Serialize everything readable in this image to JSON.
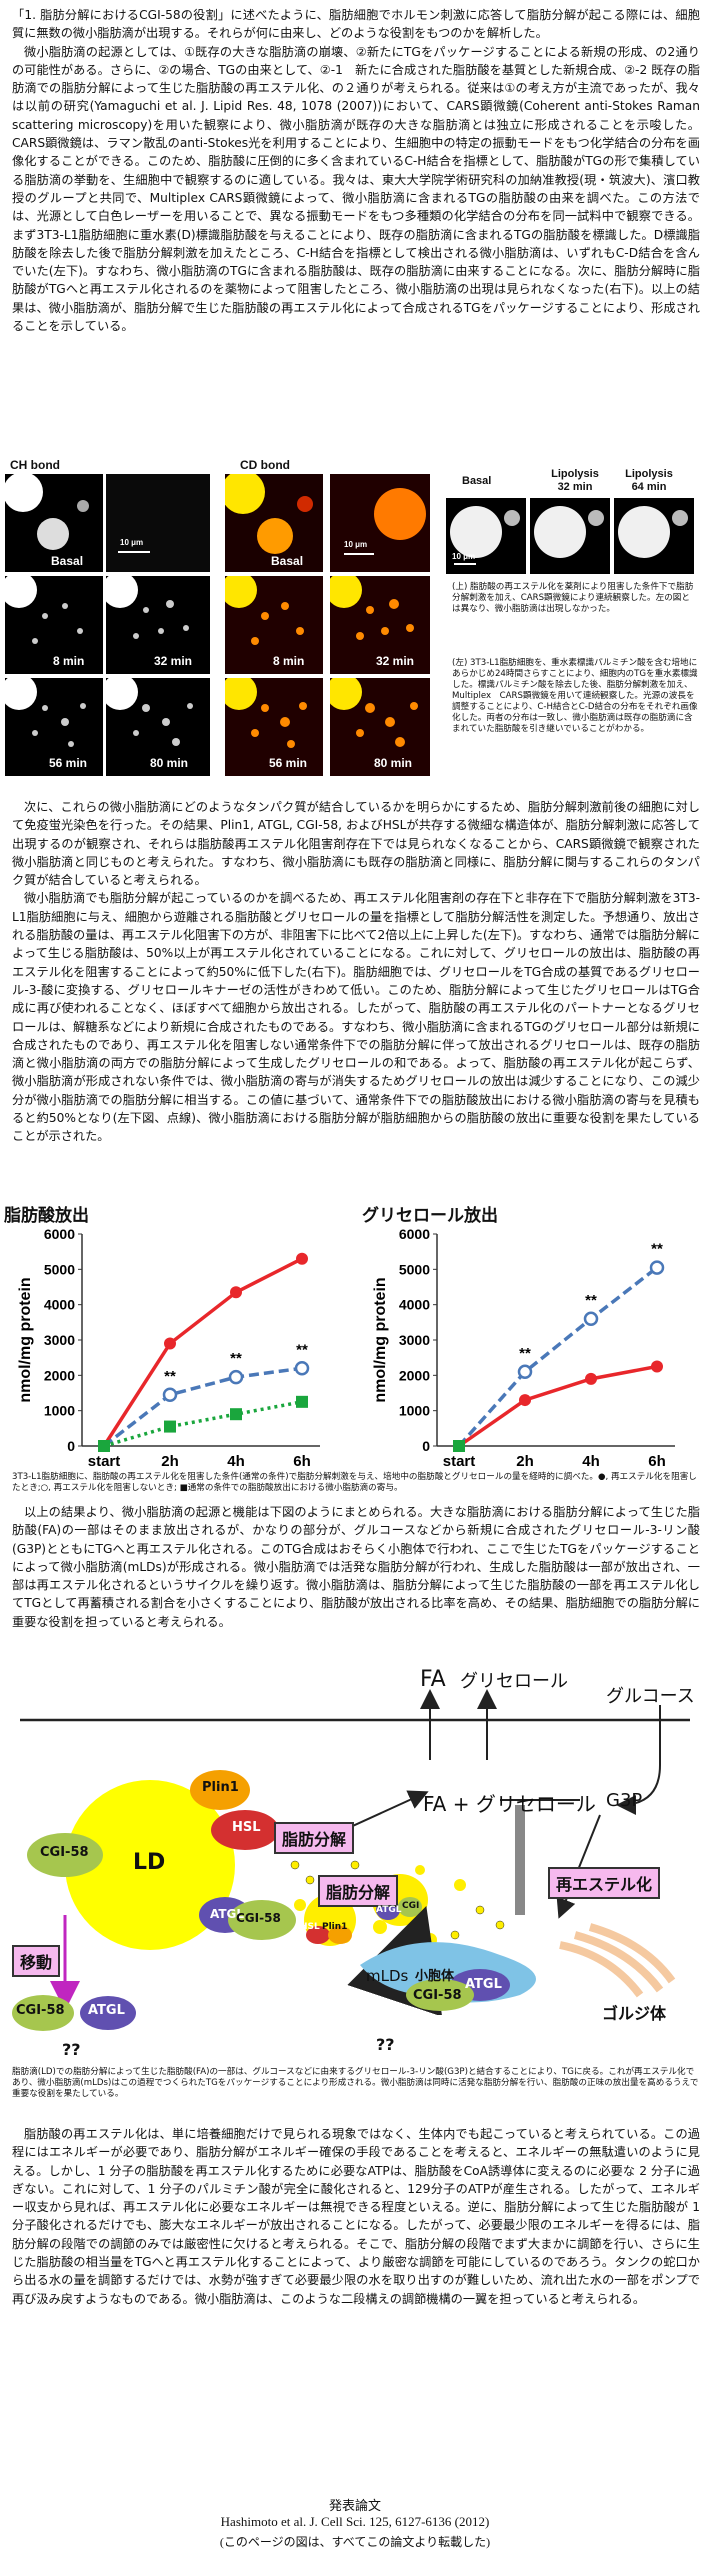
{
  "intro": {
    "p1": "「1. 脂肪分解におけるCGI-58の役割」に述べたように、脂肪細胞でホルモン刺激に応答して脂肪分解が起こる際には、細胞質に無数の微小脂肪滴が出現する。それらが何に由来し、どのような役割をもつのかを解析した。",
    "p2": "微小脂肪滴の起源としては、①既存の大きな脂肪滴の崩壊、②新たにTGをパッケージすることによる新規の形成、の2通りの可能性がある。さらに、②の場合、TGの由来として、②-1　新たに合成された脂肪酸を基質とした新規合成、②-2 既存の脂肪滴での脂肪分解によって生じた脂肪酸の再エステル化、の２通りが考えられる。従来は①の考え方が主流であったが、我々は以前の研究(Yamaguchi et al. J. Lipid Res. 48, 1078 (2007))において、CARS顕微鏡(Coherent anti-Stokes Raman scattering microscopy)を用いた観察により、微小脂肪滴が既存の大きな脂肪滴とは独立に形成されることを示唆した。CARS顕微鏡は、ラマン散乱のanti-Stokes光を利用することにより、生細胞中の特定の振動モードをもつ化学結合の分布を画像化することができる。このため、脂肪酸に圧倒的に多く含まれているC-H結合を指標として、脂肪酸がTGの形で集積している脂肪滴の挙動を、生細胞中で観察するのに適している。我々は、東大大学院学術研究科の加納准教授(現・筑波大)、濱口教授のグループと共同で、Multiplex CARS顕微鏡によって、微小脂肪滴に含まれるTGの脂肪酸の由来を調べた。この方法では、光源として白色レーザーを用いることで、異なる振動モードをもつ多種類の化学結合の分布を同一試料中で観察できる。まず3T3-L1脂肪細胞に重水素(D)標識脂肪酸を与えることにより、既存の脂肪滴に含まれるTGの脂肪酸を標識した。D標識脂肪酸を除去した後で脂肪分解刺激を加えたところ、C-H結合を指標として検出される微小脂肪滴は、いずれもC-D結合を含んでいた(左下)。すなわち、微小脂肪滴のTGに含まれる脂肪酸は、既存の脂肪滴に由来することになる。次に、脂肪分解時に脂肪酸がTGへと再エステル化されるのを薬物によって阻害したところ、微小脂肪滴の出現は見られなくなった(右下)。以上の結果は、微小脂肪滴が、脂肪分解で生じた脂肪酸の再エステル化によって合成されるTGをパッケージすることにより、形成されることを示している。"
  },
  "figure1": {
    "headers": {
      "ch": "CH bond",
      "cd": "CD bond",
      "basal": "Basal",
      "lipo32": "Lipolysis\n32 min",
      "lipo64": "Lipolysis\n64 min"
    },
    "panels": [
      "Basal",
      "Basal",
      "8 min",
      "32 min",
      "8 min",
      "32 min",
      "56 min",
      "80 min",
      "56 min",
      "80 min"
    ],
    "scalebar": "10 μm",
    "caption_right": "(上) 脂肪酸の再エステル化を薬剤により阻害した条件下で脂肪分解刺激を加え、CARS顕微鏡により連続観察した。左の図とは異なり、微小脂肪滴は出現しなかった。",
    "caption_left": "(左) 3T3-L1脂肪細胞を、重水素標識パルミチン酸を含む培地にあらかじめ24時間さらすことにより、細胞内のTGを重水素標識した。標識パルミチン酸を除去した後、脂肪分解刺激を加え、Multiplex　CARS顕微鏡を用いて連続観察した。光源の波長を調整することにより、C-H結合とC-D結合の分布をそれぞれ画像化した。両者の分布は一致し、微小脂肪滴は既存の脂肪滴に含まれていた脂肪酸を引き継いでいることがわかる。"
  },
  "section2": {
    "p1": "次に、これらの微小脂肪滴にどのようなタンパク質が結合しているかを明らかにするため、脂肪分解刺激前後の細胞に対して免疫蛍光染色を行った。その結果、Plin1, ATGL, CGI-58, およびHSLが共存する微細な構造体が、脂肪分解刺激に応答して出現するのが観察され、それらは脂肪酸再エステル化阻害剤存在下では見られなくなることから、CARS顕微鏡で観察された微小脂肪滴と同じものと考えられた。すなわち、微小脂肪滴にも既存の脂肪滴と同様に、脂肪分解に関与するこれらのタンパク質が結合していると考えられる。",
    "p2": "微小脂肪滴でも脂肪分解が起こっているのかを調べるため、再エステル化阻害剤の存在下と非存在下で脂肪分解刺激を3T3-L1脂肪細胞に与え、細胞から遊離される脂肪酸とグリセロールの量を指標として脂肪分解活性を測定した。予想通り、放出される脂肪酸の量は、再エステル化阻害下の方が、非阻害下に比べて2倍以上に上昇した(左下)。すなわち、通常では脂肪分解によって生じる脂肪酸は、50%以上が再エステル化されていることになる。これに対して、グリセロールの放出は、脂肪酸の再エステル化を阻害することによって約50%に低下した(右下)。脂肪細胞では、グリセロールをTG合成の基質であるグリセロール-3-酸に変換する、グリセロールキナーゼの活性がきわめて低い。このため、脂肪分解によって生じたグリセロールはTG合成に再び使われることなく、ほぼすべて細胞から放出される。したがって、脂肪酸の再エステル化のパートナーとなるグリセロールは、解糖系などにより新規に合成されたものである。すなわち、微小脂肪滴に含まれるTGのグリセロール部分は新規に合成されたものであり、再エステル化を阻害しない通常条件下での脂肪分解に伴って放出されるグリセロールは、既存の脂肪滴と微小脂肪滴の両方での脂肪分解によって生成したグリセロールの和である。よって、脂肪酸の再エステル化が起こらず、微小脂肪滴が形成されない条件では、微小脂肪滴の寄与が消失するためグリセロールの放出は減少することになり、この減少分が微小脂肪滴での脂肪分解に相当する。この値に基づいて、通常条件下での脂肪酸放出における微小脂肪滴の寄与を見積もると約50%となり(左下図、点線)、微小脂肪滴における脂肪分解が脂肪細胞からの脂肪酸の放出に重要な役割を果たしていることが示された。"
  },
  "chart_data": [
    {
      "type": "line",
      "title": "脂肪酸放出",
      "ylabel": "nmol/mg protein",
      "categories": [
        "start",
        "2h",
        "4h",
        "6h"
      ],
      "ylim": [
        0,
        6000
      ],
      "yticks": [
        0,
        1000,
        2000,
        3000,
        4000,
        5000,
        6000
      ],
      "series": [
        {
          "values": [
            0,
            2900,
            4350,
            5300
          ],
          "color": "#e8272b",
          "style": "solid",
          "marker": "circle-filled"
        },
        {
          "values": [
            0,
            1450,
            1950,
            2200
          ],
          "color": "#4a78b8",
          "style": "dashed",
          "marker": "circle-open"
        },
        {
          "values": [
            0,
            550,
            900,
            1250
          ],
          "color": "#1aa63d",
          "style": "dotted",
          "marker": "square-filled"
        }
      ],
      "annotations": [
        "**",
        "**",
        "**"
      ]
    },
    {
      "type": "line",
      "title": "グリセロール放出",
      "ylabel": "nmol/mg protein",
      "categories": [
        "start",
        "2h",
        "4h",
        "6h"
      ],
      "ylim": [
        0,
        6000
      ],
      "yticks": [
        0,
        1000,
        2000,
        3000,
        4000,
        5000,
        6000
      ],
      "series": [
        {
          "values": [
            0,
            2100,
            3600,
            5050
          ],
          "color": "#4a78b8",
          "style": "dashed",
          "marker": "circle-open"
        },
        {
          "values": [
            0,
            1300,
            1900,
            2250
          ],
          "color": "#e8272b",
          "style": "solid",
          "marker": "circle-filled"
        }
      ],
      "annotations": [
        "**",
        "**",
        "**"
      ]
    }
  ],
  "chart_caption": "3T3-L1脂肪細胞に、脂肪酸の再エステル化を阻害した条件(通常の条件)で脂肪分解刺激を与え、培地中の脂肪酸とグリセロールの量を経時的に調べた。●, 再エステル化を阻害したとき;○, 再エステル化を阻害しないとき; ■通常の条件での脂肪酸放出における微小脂肪滴の寄与。",
  "section3": {
    "p1": "以上の結果より、微小脂肪滴の起源と機能は下図のようにまとめられる。大きな脂肪滴における脂肪分解によって生じた脂肪酸(FA)の一部はそのまま放出されるが、かなりの部分が、グルコースなどから新規に合成されたグリセロール-3-リン酸 (G3P)とともにTGへと再エステル化される。このTG合成はおそらく小胞体で行われ、ここで生じたTGをパッケージすることによって微小脂肪滴(mLDs)が形成される。微小脂肪滴では活発な脂肪分解が行われ、生成した脂肪酸は一部が放出され、一部は再エステル化されるというサイクルを繰り返す。微小脂肪滴は、脂肪分解によって生じた脂肪酸の一部を再エステル化してTGとして再蓄積される割合を小さくすることにより、脂肪酸が放出される比率を高め、その結果、脂肪細胞での脂肪分解に重要な役割を担っていると考えられる。"
  },
  "diagram": {
    "fa_top": "FA",
    "glycerol_top": "グリセロール",
    "glucose": "グルコース",
    "fa_glycerol": "FA + グリセロール",
    "g3p": "G3P",
    "ld": "LD",
    "plin1": "Plin1",
    "hsl": "HSL",
    "cgi58": "CGI-58",
    "atgl": "ATGL",
    "lipolysis1": "脂肪分解",
    "lipolysis2": "脂肪分解",
    "reester": "再エステル化",
    "move": "移動",
    "mlds": "mLDs",
    "er": "小胞体",
    "golgi": "ゴルジ体",
    "qq": "??",
    "hsl_small": "HSL",
    "plin_small": "Plin1",
    "atgl_small": "ATGL",
    "cgi_small": "CGI",
    "caption": "脂肪滴(LD)での脂肪分解によって生じた脂肪酸(FA)の一部は、グルコースなどに由来するグリセロール-3-リン酸(G3P)と結合することにより、TGに戻る。これが再エステル化であり、微小脂肪滴(mLDs)はこの過程でつくられたTGをパッケージすることにより形成される。微小脂肪滴は同時に活発な脂肪分解を行い、脂肪酸の正味の放出量を高めるうえで重要な役割を果たしている。"
  },
  "section4": {
    "p1": "脂肪酸の再エステル化は、単に培養細胞だけで見られる現象ではなく、生体内でも起こっていると考えられている。この過程にはエネルギーが必要であり、脂肪分解がエネルギー確保の手段であることを考えると、エネルギーの無駄遣いのように見える。しかし、1 分子の脂肪酸を再エステル化するために必要なATPは、脂肪酸をCoA誘導体に変えるのに必要な 2 分子に過ぎない。これに対して、1 分子のパルミチン酸が完全に酸化されると、129分子のATPが産生される。したがって、エネルギー収支から見れば、再エステル化に必要なエネルギーは無視できる程度といえる。逆に、脂肪分解によって生じた脂肪酸が 1 分子酸化されるだけでも、膨大なエネルギーが放出されることになる。したがって、必要最少限のエネルギーを得るには、脂肪分解の段階での調節のみでは厳密性に欠けると考えられる。そこで、脂肪分解の段階でまず大まかに調節を行い、さらに生じた脂肪酸の相当量をTGへと再エステル化することによって、より厳密な調節を可能にしているのであろう。タンクの蛇口から出る水の量を調節するだけでは、水勢が強すぎて必要最少限の水を取り出すのが難しいため、流れ出た水の一部をポンプで再び汲み戻すようなものである。微小脂肪滴は、このような二段構えの調節機構の一翼を担っていると考えられる。"
  },
  "reference": {
    "heading": "発表論文",
    "citation": "Hashimoto et al. J. Cell Sci. 125, 6127-6136 (2012)",
    "note": "(このページの図は、すべてこの論文より転載した)"
  }
}
